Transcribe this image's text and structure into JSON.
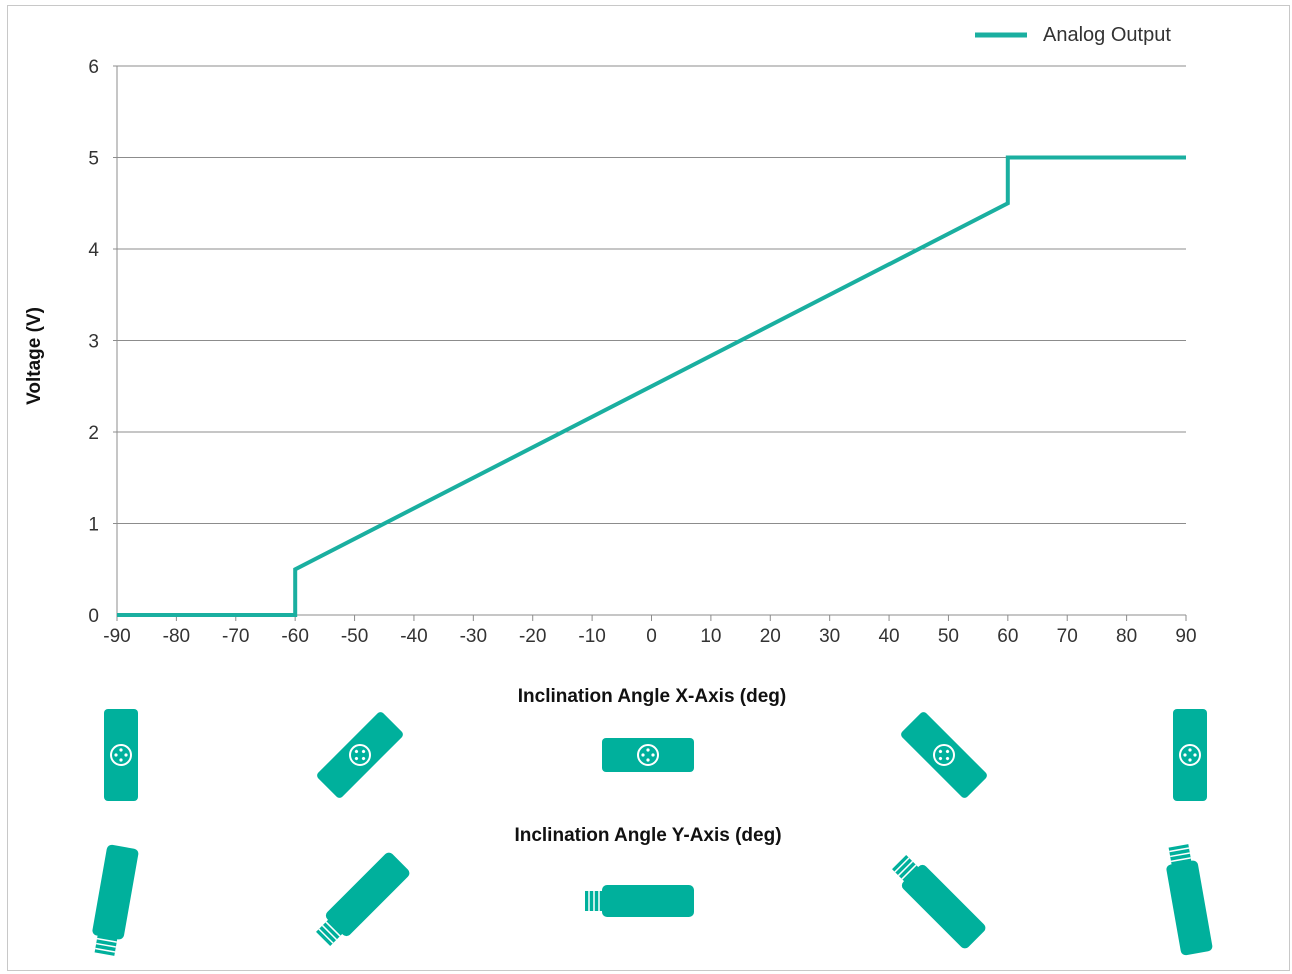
{
  "chart_data": {
    "type": "line",
    "title": "",
    "xlabel": "Inclination Angle X-Axis (deg)",
    "secondary_xlabel": "Inclination Angle Y-Axis (deg)",
    "ylabel": "Voltage (V)",
    "xlim": [
      -90,
      90
    ],
    "ylim": [
      0,
      6
    ],
    "x_ticks": [
      -90,
      -80,
      -70,
      -60,
      -50,
      -40,
      -30,
      -20,
      -10,
      0,
      10,
      20,
      30,
      40,
      50,
      60,
      70,
      80,
      90
    ],
    "y_ticks": [
      0,
      1,
      2,
      3,
      4,
      5,
      6
    ],
    "grid": "horizontal",
    "legend_position": "top-right",
    "series": [
      {
        "name": "Analog Output",
        "color": "#1aafa0",
        "x": [
          -90,
          -60,
          -60,
          60,
          60,
          90
        ],
        "y": [
          0,
          0,
          0.5,
          4.5,
          5,
          5
        ]
      }
    ]
  },
  "icons": {
    "x_axis_orientation_row": [
      "sensor-front-icon",
      "sensor-front-icon",
      "sensor-front-icon",
      "sensor-front-icon",
      "sensor-front-icon"
    ],
    "y_axis_orientation_row": [
      "sensor-side-icon",
      "sensor-side-icon",
      "sensor-side-icon",
      "sensor-side-icon",
      "sensor-side-icon"
    ],
    "icon_color": "#00b09c",
    "orientation_angles_deg": [
      -90,
      -45,
      0,
      45,
      90
    ]
  }
}
